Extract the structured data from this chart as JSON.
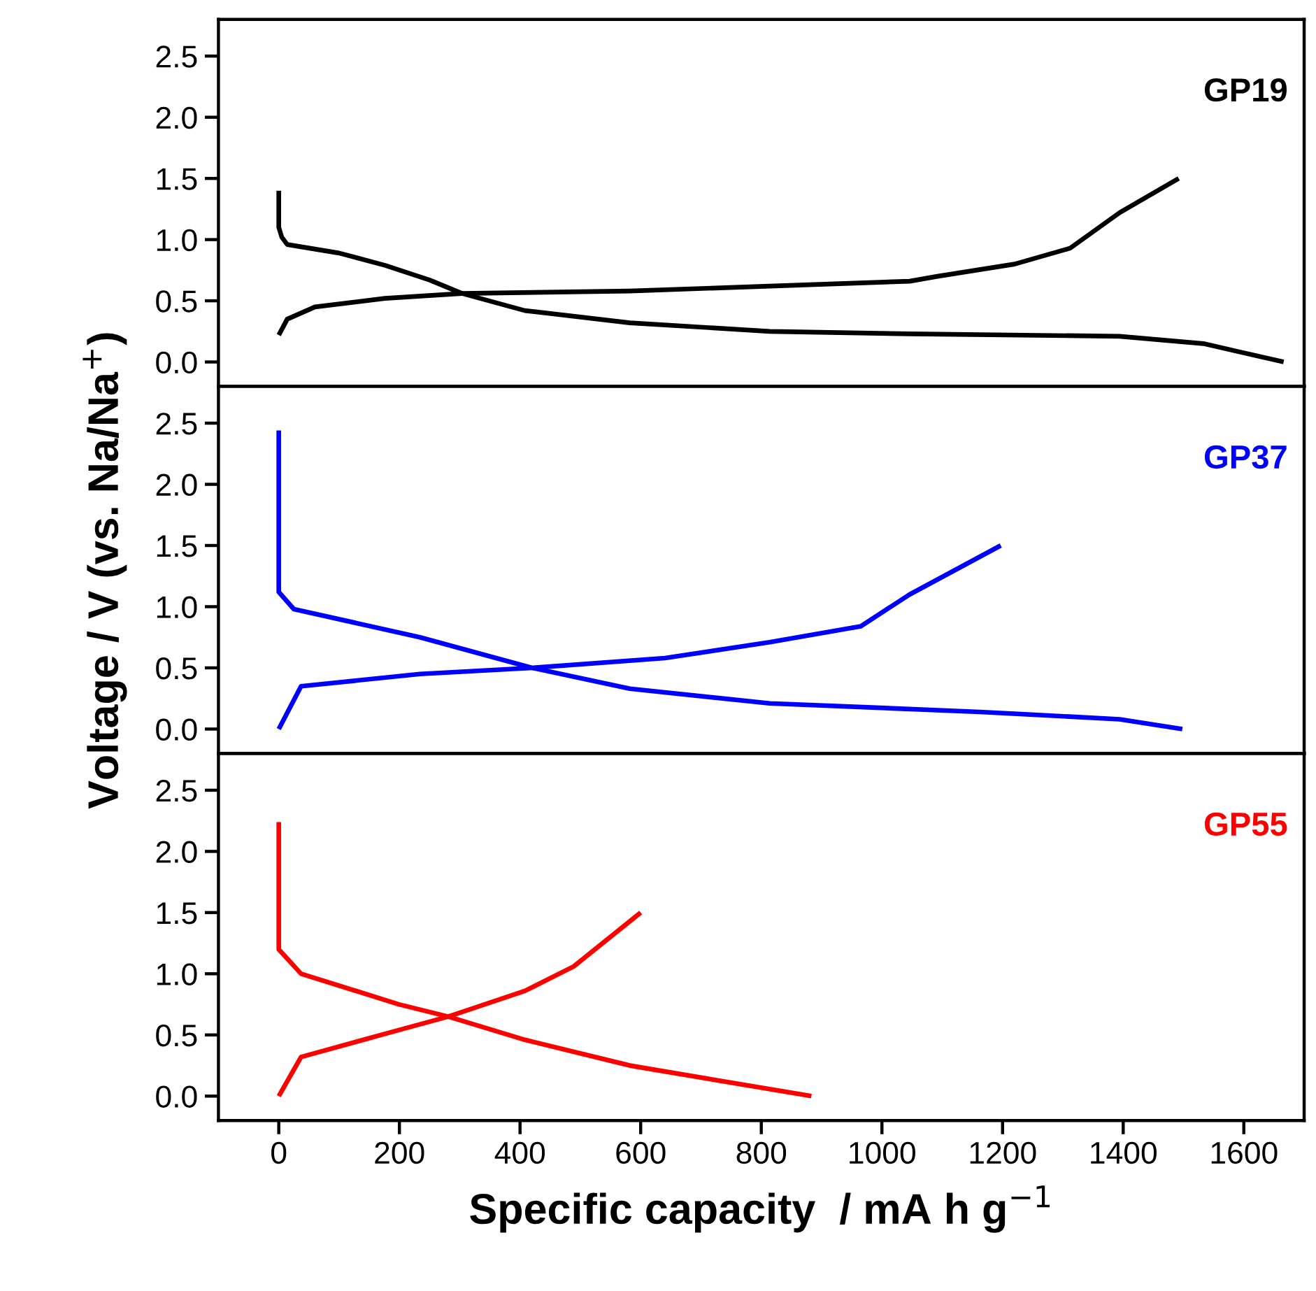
{
  "chart_data": [
    {
      "type": "line",
      "annotations": [
        "GP19"
      ],
      "xlim": [
        -100,
        1700
      ],
      "xticks": [
        0,
        200,
        400,
        600,
        800,
        1000,
        1200,
        1400,
        1600
      ],
      "ylim": [
        -0.2,
        2.8
      ],
      "yticks": [
        {
          "value": 0,
          "label": "0.0"
        },
        0.5,
        {
          "value": 1,
          "label": "1.0"
        },
        1.5,
        {
          "value": 2,
          "label": "2.0"
        },
        2.5
      ],
      "tick_labels": "y",
      "grid": false,
      "legend": false,
      "series": [
        {
          "color": "#000000",
          "x": [
            0,
            0,
            5,
            14,
            100,
            176,
            250,
            304,
            408,
            582,
            814,
            1046,
            1394,
            1533,
            1666
          ],
          "values": [
            1.4,
            1.1,
            1.02,
            0.96,
            0.89,
            0.79,
            0.67,
            0.56,
            0.42,
            0.32,
            0.25,
            0.23,
            0.21,
            0.15,
            0.0
          ]
        },
        {
          "color": "#000000",
          "x": [
            0,
            14,
            60,
            176,
            304,
            582,
            814,
            1046,
            1092,
            1220,
            1312,
            1394,
            1492
          ],
          "values": [
            0.22,
            0.35,
            0.45,
            0.52,
            0.56,
            0.58,
            0.62,
            0.66,
            0.7,
            0.8,
            0.93,
            1.22,
            1.5
          ]
        }
      ]
    },
    {
      "type": "line",
      "annotations": [
        "GP37"
      ],
      "xlim": [
        -100,
        1700
      ],
      "xticks": [
        0,
        200,
        400,
        600,
        800,
        1000,
        1200,
        1400,
        1600
      ],
      "ylim": [
        -0.2,
        2.8
      ],
      "yticks": [
        {
          "value": 0,
          "label": "0.0"
        },
        0.5,
        {
          "value": 1,
          "label": "1.0"
        },
        1.5,
        {
          "value": 2,
          "label": "2.0"
        },
        2.5
      ],
      "tick_labels": "y",
      "grid": false,
      "legend": false,
      "ylabel": "Voltage / V (vs. Na/Na$^{+}$)",
      "series": [
        {
          "color": "#0000ff",
          "x": [
            0,
            0,
            25,
            234,
            420,
            582,
            814,
            1162,
            1394,
            1498
          ],
          "values": [
            2.44,
            1.12,
            0.98,
            0.75,
            0.5,
            0.33,
            0.21,
            0.14,
            0.08,
            0.0
          ]
        },
        {
          "color": "#0000ff",
          "x": [
            0,
            37,
            234,
            420,
            640,
            814,
            965,
            1046,
            1197
          ],
          "values": [
            0.0,
            0.35,
            0.45,
            0.5,
            0.58,
            0.71,
            0.84,
            1.1,
            1.5
          ]
        }
      ]
    },
    {
      "type": "line",
      "annotations": [
        "GP55"
      ],
      "xlim": [
        -100,
        1700
      ],
      "xticks": [
        0,
        200,
        400,
        600,
        800,
        1000,
        1200,
        1400,
        1600
      ],
      "ylim": [
        -0.2,
        2.8
      ],
      "yticks": [
        {
          "value": 0,
          "label": "0.0"
        },
        0.5,
        {
          "value": 1,
          "label": "1.0"
        },
        1.5,
        {
          "value": 2,
          "label": "2.0"
        },
        2.5
      ],
      "grid": false,
      "legend": false,
      "xlabel": "Specific capacity  / mA h g$^{−1}$",
      "series": [
        {
          "color": "#ff0000",
          "x": [
            0,
            0,
            37,
            199,
            281,
            408,
            582,
            883
          ],
          "values": [
            2.24,
            1.2,
            1.0,
            0.75,
            0.65,
            0.46,
            0.25,
            0.0
          ]
        },
        {
          "color": "#ff0000",
          "x": [
            0,
            37,
            199,
            281,
            408,
            489,
            600
          ],
          "values": [
            0.0,
            0.32,
            0.54,
            0.65,
            0.86,
            1.06,
            1.5
          ]
        }
      ]
    }
  ]
}
